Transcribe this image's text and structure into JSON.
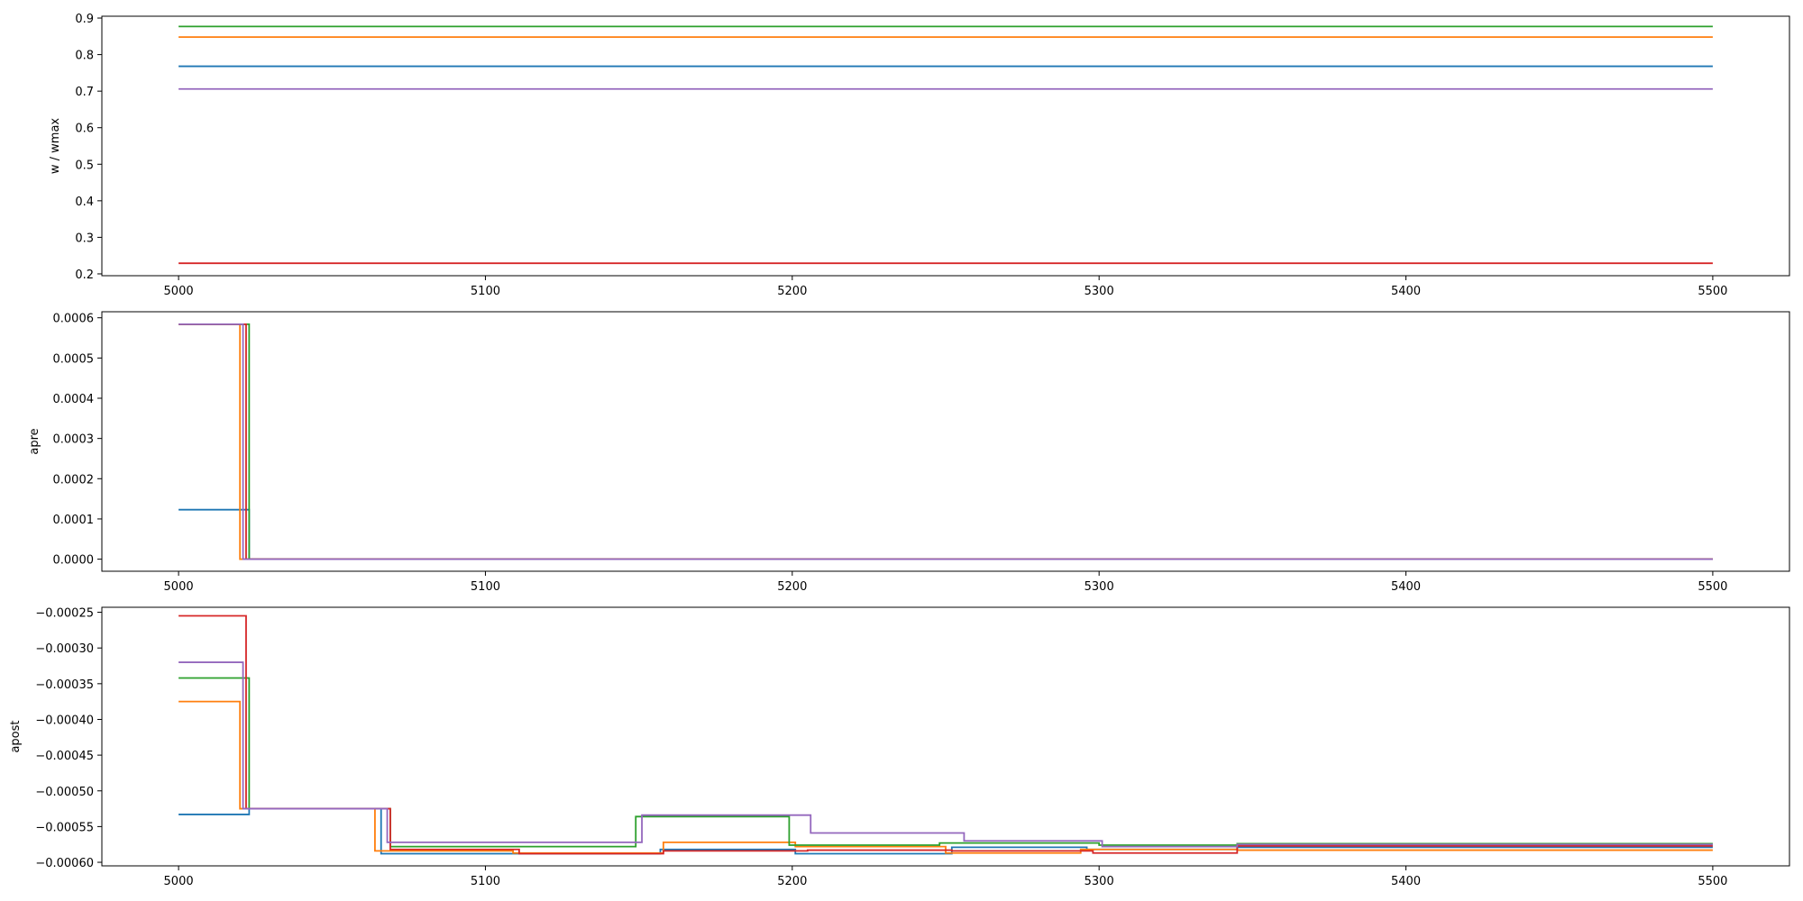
{
  "chart_data": [
    {
      "type": "line",
      "ylabel": "w / wmax",
      "xlim": [
        4975,
        5525
      ],
      "ylim": [
        0.195,
        0.905
      ],
      "xticks": [
        5000,
        5100,
        5200,
        5300,
        5400,
        5500
      ],
      "xtick_labels": [
        "5000",
        "5100",
        "5200",
        "5300",
        "5400",
        "5500"
      ],
      "yticks": [
        0.2,
        0.3,
        0.4,
        0.5,
        0.6,
        0.7,
        0.8,
        0.9
      ],
      "ytick_labels": [
        "0.2",
        "0.3",
        "0.4",
        "0.5",
        "0.6",
        "0.7",
        "0.8",
        "0.9"
      ],
      "grid": false,
      "series": [
        {
          "color": "#1f77b4",
          "x": [
            5000,
            5500
          ],
          "y": [
            0.768,
            0.768
          ]
        },
        {
          "color": "#ff7f0e",
          "x": [
            5000,
            5500
          ],
          "y": [
            0.848,
            0.848
          ]
        },
        {
          "color": "#2ca02c",
          "x": [
            5000,
            5500
          ],
          "y": [
            0.877,
            0.877
          ]
        },
        {
          "color": "#d62728",
          "x": [
            5000,
            5500
          ],
          "y": [
            0.229,
            0.229
          ]
        },
        {
          "color": "#9467bd",
          "x": [
            5000,
            5500
          ],
          "y": [
            0.706,
            0.706
          ]
        }
      ]
    },
    {
      "type": "line",
      "ylabel": "apre",
      "xlim": [
        4975,
        5525
      ],
      "ylim": [
        -3e-05,
        0.000615
      ],
      "xticks": [
        5000,
        5100,
        5200,
        5300,
        5400,
        5500
      ],
      "xtick_labels": [
        "5000",
        "5100",
        "5200",
        "5300",
        "5400",
        "5500"
      ],
      "yticks": [
        0.0,
        0.0001,
        0.0002,
        0.0003,
        0.0004,
        0.0005,
        0.0006
      ],
      "ytick_labels": [
        "0.0000",
        "0.0001",
        "0.0002",
        "0.0003",
        "0.0004",
        "0.0005",
        "0.0006"
      ],
      "grid": false,
      "series": [
        {
          "color": "#1f77b4",
          "step": true,
          "x": [
            5000,
            5023,
            5500
          ],
          "y": [
            0.000123,
            0.0,
            0.0
          ]
        },
        {
          "color": "#ff7f0e",
          "step": true,
          "x": [
            5000,
            5020,
            5500
          ],
          "y": [
            0.000584,
            0.0,
            0.0
          ]
        },
        {
          "color": "#2ca02c",
          "step": true,
          "x": [
            5000,
            5023,
            5500
          ],
          "y": [
            0.000584,
            0.0,
            0.0
          ]
        },
        {
          "color": "#d62728",
          "step": true,
          "x": [
            5000,
            5022,
            5500
          ],
          "y": [
            0.000584,
            0.0,
            0.0
          ]
        },
        {
          "color": "#9467bd",
          "step": true,
          "x": [
            5000,
            5021,
            5500
          ],
          "y": [
            0.000584,
            0.0,
            0.0
          ]
        }
      ]
    },
    {
      "type": "line",
      "ylabel": "apost",
      "xlim": [
        4975,
        5525
      ],
      "ylim": [
        -0.000605,
        -0.000243
      ],
      "xticks": [
        5000,
        5100,
        5200,
        5300,
        5400,
        5500
      ],
      "xtick_labels": [
        "5000",
        "5100",
        "5200",
        "5300",
        "5400",
        "5500"
      ],
      "yticks": [
        -0.0006,
        -0.00055,
        -0.0005,
        -0.00045,
        -0.0004,
        -0.00035,
        -0.0003,
        -0.00025
      ],
      "ytick_labels": [
        "−0.00060",
        "−0.00055",
        "−0.00050",
        "−0.00045",
        "−0.00040",
        "−0.00035",
        "−0.00030",
        "−0.00025"
      ],
      "grid": false,
      "series": [
        {
          "color": "#1f77b4",
          "step": true,
          "x": [
            5000,
            5023,
            5066,
            5157,
            5201,
            5252,
            5296,
            5345,
            5500
          ],
          "y": [
            -0.000533,
            -0.000525,
            -0.000588,
            -0.000582,
            -0.000588,
            -0.000579,
            -0.000582,
            -0.000579,
            -0.000579
          ]
        },
        {
          "color": "#ff7f0e",
          "step": true,
          "x": [
            5000,
            5020,
            5064,
            5109,
            5158,
            5201,
            5250,
            5294,
            5345,
            5500
          ],
          "y": [
            -0.000375,
            -0.000525,
            -0.000584,
            -0.000587,
            -0.000572,
            -0.000578,
            -0.000587,
            -0.000582,
            -0.000583,
            -0.000583
          ]
        },
        {
          "color": "#2ca02c",
          "step": true,
          "x": [
            5000,
            5023,
            5069,
            5149,
            5199,
            5248,
            5300,
            5345,
            5500
          ],
          "y": [
            -0.000342,
            -0.000525,
            -0.000578,
            -0.000536,
            -0.000576,
            -0.000573,
            -0.000576,
            -0.000574,
            -0.000574
          ]
        },
        {
          "color": "#d62728",
          "step": true,
          "x": [
            5000,
            5022,
            5069,
            5111,
            5158,
            5205,
            5252,
            5298,
            5345,
            5500
          ],
          "y": [
            -0.000255,
            -0.000525,
            -0.000582,
            -0.000588,
            -0.000584,
            -0.000583,
            -0.000584,
            -0.000587,
            -0.000577,
            -0.000577
          ]
        },
        {
          "color": "#9467bd",
          "step": true,
          "x": [
            5000,
            5021,
            5068,
            5151,
            5206,
            5256,
            5301,
            5345,
            5500
          ],
          "y": [
            -0.00032,
            -0.000525,
            -0.000572,
            -0.000534,
            -0.000559,
            -0.00057,
            -0.000578,
            -0.000575,
            -0.000575
          ]
        }
      ]
    }
  ]
}
